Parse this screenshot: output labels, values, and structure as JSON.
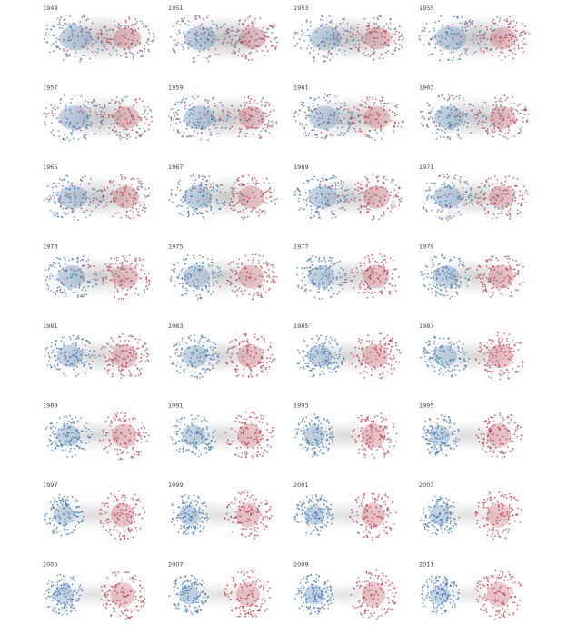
{
  "panels": [
    {
      "label": "1949"
    },
    {
      "label": "1951"
    },
    {
      "label": "1953"
    },
    {
      "label": "1955"
    },
    {
      "label": "1957"
    },
    {
      "label": "1959"
    },
    {
      "label": "1961"
    },
    {
      "label": "1963"
    },
    {
      "label": "1965"
    },
    {
      "label": "1967"
    },
    {
      "label": "1969"
    },
    {
      "label": "1971"
    },
    {
      "label": "1973"
    },
    {
      "label": "1975"
    },
    {
      "label": "1977"
    },
    {
      "label": "1979"
    },
    {
      "label": "1981"
    },
    {
      "label": "1983"
    },
    {
      "label": "1985"
    },
    {
      "label": "1987"
    },
    {
      "label": "1989"
    },
    {
      "label": "1991"
    },
    {
      "label": "1993"
    },
    {
      "label": "1995"
    },
    {
      "label": "1997"
    },
    {
      "label": "1999"
    },
    {
      "label": "2001"
    },
    {
      "label": "2003"
    },
    {
      "label": "2005"
    },
    {
      "label": "2007"
    },
    {
      "label": "2009"
    },
    {
      "label": "2011"
    }
  ]
}
